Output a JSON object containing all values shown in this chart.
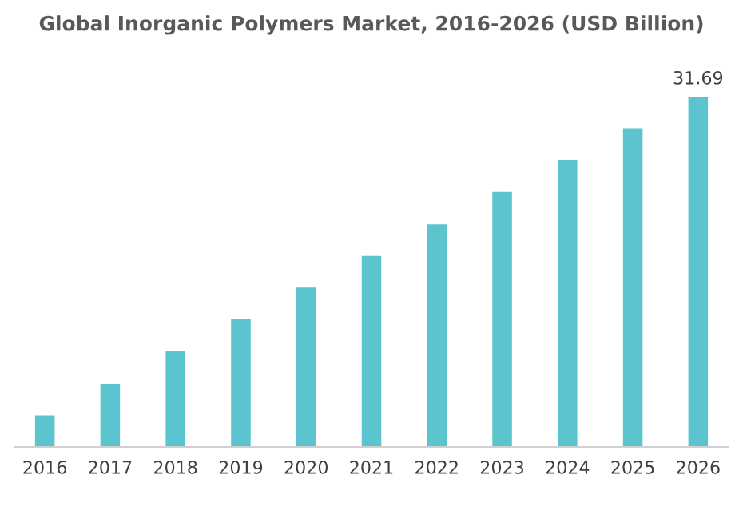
{
  "chart_data": {
    "type": "bar",
    "title": "Global Inorganic Polymers Market, 2016-2026 (USD Billion)",
    "categories": [
      "2016",
      "2017",
      "2018",
      "2019",
      "2020",
      "2021",
      "2022",
      "2023",
      "2024",
      "2025",
      "2026"
    ],
    "values": [
      2.85,
      5.71,
      8.71,
      11.56,
      14.42,
      17.27,
      20.13,
      23.12,
      25.98,
      28.84,
      31.69
    ],
    "value_labels": [
      null,
      null,
      null,
      null,
      null,
      null,
      null,
      null,
      null,
      null,
      "31.69"
    ],
    "color": "#5bc4ce",
    "grid": false,
    "legend": false
  }
}
